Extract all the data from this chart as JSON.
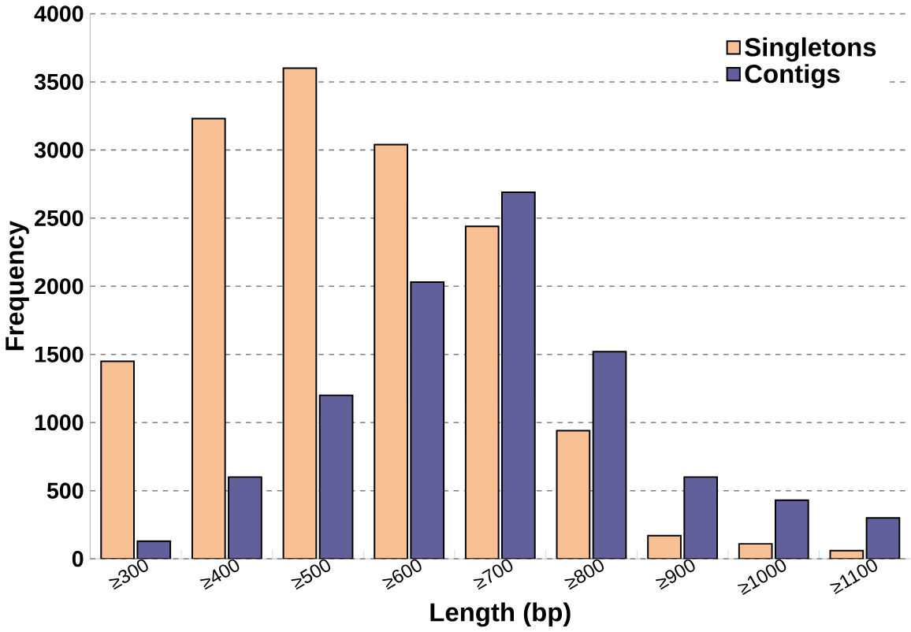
{
  "chart_data": {
    "type": "bar",
    "xlabel": "Length (bp)",
    "ylabel": "Frequency",
    "categories": [
      "≥300",
      "≥400",
      "≥500",
      "≥600",
      "≥700",
      "≥800",
      "≥900",
      "≥1000",
      "≥1100"
    ],
    "series": [
      {
        "name": "Singletons",
        "color": "#f9c193",
        "values": [
          1450,
          3230,
          3600,
          3040,
          2440,
          940,
          170,
          110,
          60
        ]
      },
      {
        "name": "Contigs",
        "color": "#62609a",
        "values": [
          130,
          600,
          1200,
          2030,
          2690,
          1520,
          600,
          430,
          300
        ]
      }
    ],
    "ylim": [
      0,
      4000
    ],
    "yticks": [
      0,
      500,
      1000,
      1500,
      2000,
      2500,
      3000,
      3500,
      4000
    ],
    "grid": "y",
    "legend": "top right"
  }
}
